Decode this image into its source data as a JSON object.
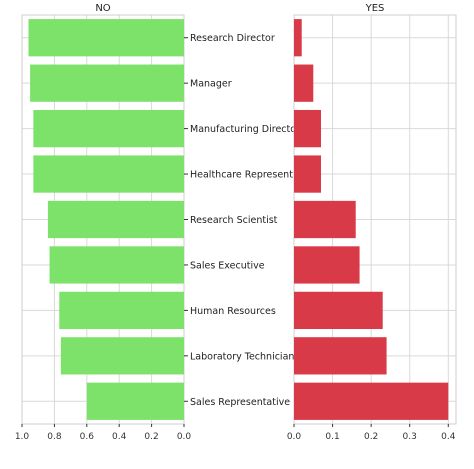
{
  "chart_data": [
    {
      "type": "bar",
      "orientation": "horizontal",
      "title": "NO",
      "categories": [
        "Research Director",
        "Manager",
        "Manufacturing Director",
        "Healthcare Representative",
        "Research Scientist",
        "Sales Executive",
        "Human Resources",
        "Laboratory Technician",
        "Sales Representative"
      ],
      "values": [
        0.96,
        0.95,
        0.93,
        0.93,
        0.84,
        0.83,
        0.77,
        0.76,
        0.6
      ],
      "xlim": [
        1.0,
        0.0
      ],
      "x_inverted": true,
      "xticks": [
        "1.0",
        "0.8",
        "0.6",
        "0.4",
        "0.2",
        "0.0"
      ],
      "grid": true,
      "color": "#7de26a"
    },
    {
      "type": "bar",
      "orientation": "horizontal",
      "title": "YES",
      "categories": [
        "Research Director",
        "Manager",
        "Manufacturing Director",
        "Healthcare Representative",
        "Research Scientist",
        "Sales Executive",
        "Human Resources",
        "Laboratory Technician",
        "Sales Representative"
      ],
      "values": [
        0.02,
        0.05,
        0.07,
        0.07,
        0.16,
        0.17,
        0.23,
        0.24,
        0.4
      ],
      "xlim": [
        0.0,
        0.42
      ],
      "xticks": [
        "0.0",
        "0.1",
        "0.2",
        "0.3",
        "0.4"
      ],
      "grid": true,
      "color": "#d93a47"
    }
  ]
}
